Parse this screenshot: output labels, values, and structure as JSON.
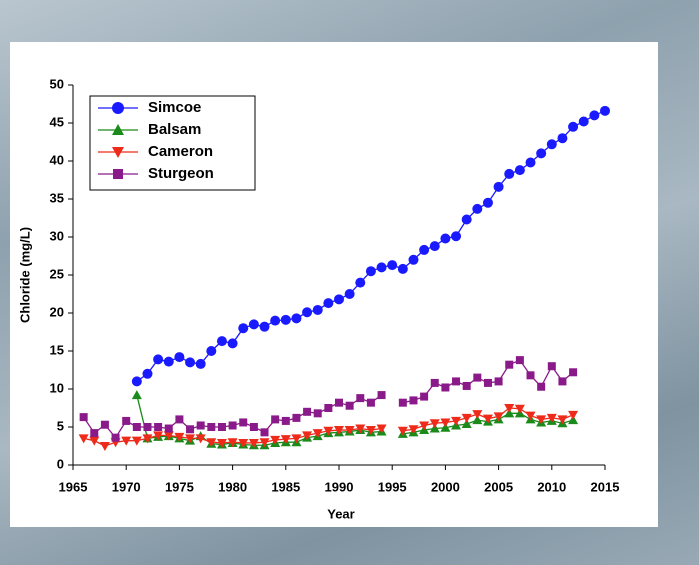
{
  "chart_data": {
    "type": "line",
    "x_label": "Year",
    "y_label": "Chloride (mg/L)",
    "x": [
      1966,
      1967,
      1968,
      1969,
      1970,
      1971,
      1972,
      1973,
      1974,
      1975,
      1976,
      1977,
      1978,
      1979,
      1980,
      1981,
      1982,
      1983,
      1984,
      1985,
      1986,
      1987,
      1988,
      1989,
      1990,
      1991,
      1992,
      1993,
      1994,
      1995,
      1996,
      1997,
      1998,
      1999,
      2000,
      2001,
      2002,
      2003,
      2004,
      2005,
      2006,
      2007,
      2008,
      2009,
      2010,
      2011,
      2012,
      2013,
      2014,
      2015
    ],
    "series": [
      {
        "name": "Simcoe",
        "color": "#1a1aff",
        "marker": "circle",
        "values": [
          null,
          null,
          null,
          null,
          null,
          11,
          12,
          13.9,
          13.6,
          14.2,
          13.5,
          13.3,
          15,
          16.3,
          16,
          18,
          18.5,
          18.2,
          19,
          19.1,
          19.3,
          20.1,
          20.4,
          21.3,
          21.8,
          22.5,
          24,
          25.5,
          26,
          26.3,
          25.8,
          27,
          28.3,
          28.8,
          29.8,
          30.1,
          32.3,
          33.7,
          34.5,
          36.6,
          38.3,
          38.8,
          39.8,
          41,
          42.2,
          43,
          44.5,
          45.2,
          46,
          46.6
        ]
      },
      {
        "name": "Balsam",
        "color": "#1a8a1a",
        "marker": "triangle",
        "values": [
          null,
          null,
          null,
          null,
          null,
          9.2,
          3.5,
          3.7,
          3.8,
          3.5,
          3.2,
          3.8,
          2.8,
          2.7,
          2.9,
          2.7,
          2.6,
          2.6,
          2.9,
          3,
          3,
          3.6,
          3.8,
          4.2,
          4.3,
          4.4,
          4.6,
          4.3,
          4.4,
          null,
          4.1,
          4.3,
          4.6,
          4.8,
          4.9,
          5.2,
          5.4,
          5.9,
          5.7,
          6,
          6.8,
          6.8,
          6,
          5.6,
          5.8,
          5.5,
          5.9,
          null,
          null,
          null
        ]
      },
      {
        "name": "Cameron",
        "color": "#ee2a1a",
        "marker": "down-triangle",
        "values": [
          3.5,
          3.2,
          2.5,
          3,
          3.2,
          3.2,
          3.5,
          3.9,
          3.9,
          3.7,
          3.5,
          3.5,
          3,
          2.9,
          3,
          2.9,
          2.9,
          3,
          3.3,
          3.4,
          3.5,
          3.9,
          4.2,
          4.5,
          4.6,
          4.6,
          4.8,
          4.6,
          4.8,
          null,
          4.5,
          4.7,
          5.2,
          5.5,
          5.6,
          5.8,
          6.2,
          6.7,
          6.1,
          6.4,
          7.5,
          7.4,
          6.5,
          6,
          6.2,
          6,
          6.6,
          null,
          null,
          null
        ]
      },
      {
        "name": "Sturgeon",
        "color": "#8a1a8a",
        "marker": "square",
        "values": [
          6.3,
          4.2,
          5.3,
          3.6,
          5.8,
          5,
          5,
          5,
          4.8,
          6,
          4.7,
          5.2,
          5,
          5,
          5.2,
          5.6,
          5,
          4.3,
          6,
          5.8,
          6.2,
          7,
          6.8,
          7.5,
          8.2,
          7.8,
          8.8,
          8.2,
          9.2,
          null,
          8.2,
          8.5,
          9,
          10.8,
          10.2,
          11,
          10.4,
          11.5,
          10.8,
          11,
          13.2,
          13.8,
          11.8,
          10.3,
          13,
          11,
          12.2,
          null,
          null,
          null
        ]
      }
    ],
    "xlim": [
      1965,
      2015
    ],
    "xticks": [
      1965,
      1970,
      1975,
      1980,
      1985,
      1990,
      1995,
      2000,
      2005,
      2010,
      2015
    ],
    "ylim": [
      0,
      50
    ],
    "yticks": [
      0,
      5,
      10,
      15,
      20,
      25,
      30,
      35,
      40,
      45,
      50
    ],
    "grid": false,
    "legend": "upper-left"
  }
}
